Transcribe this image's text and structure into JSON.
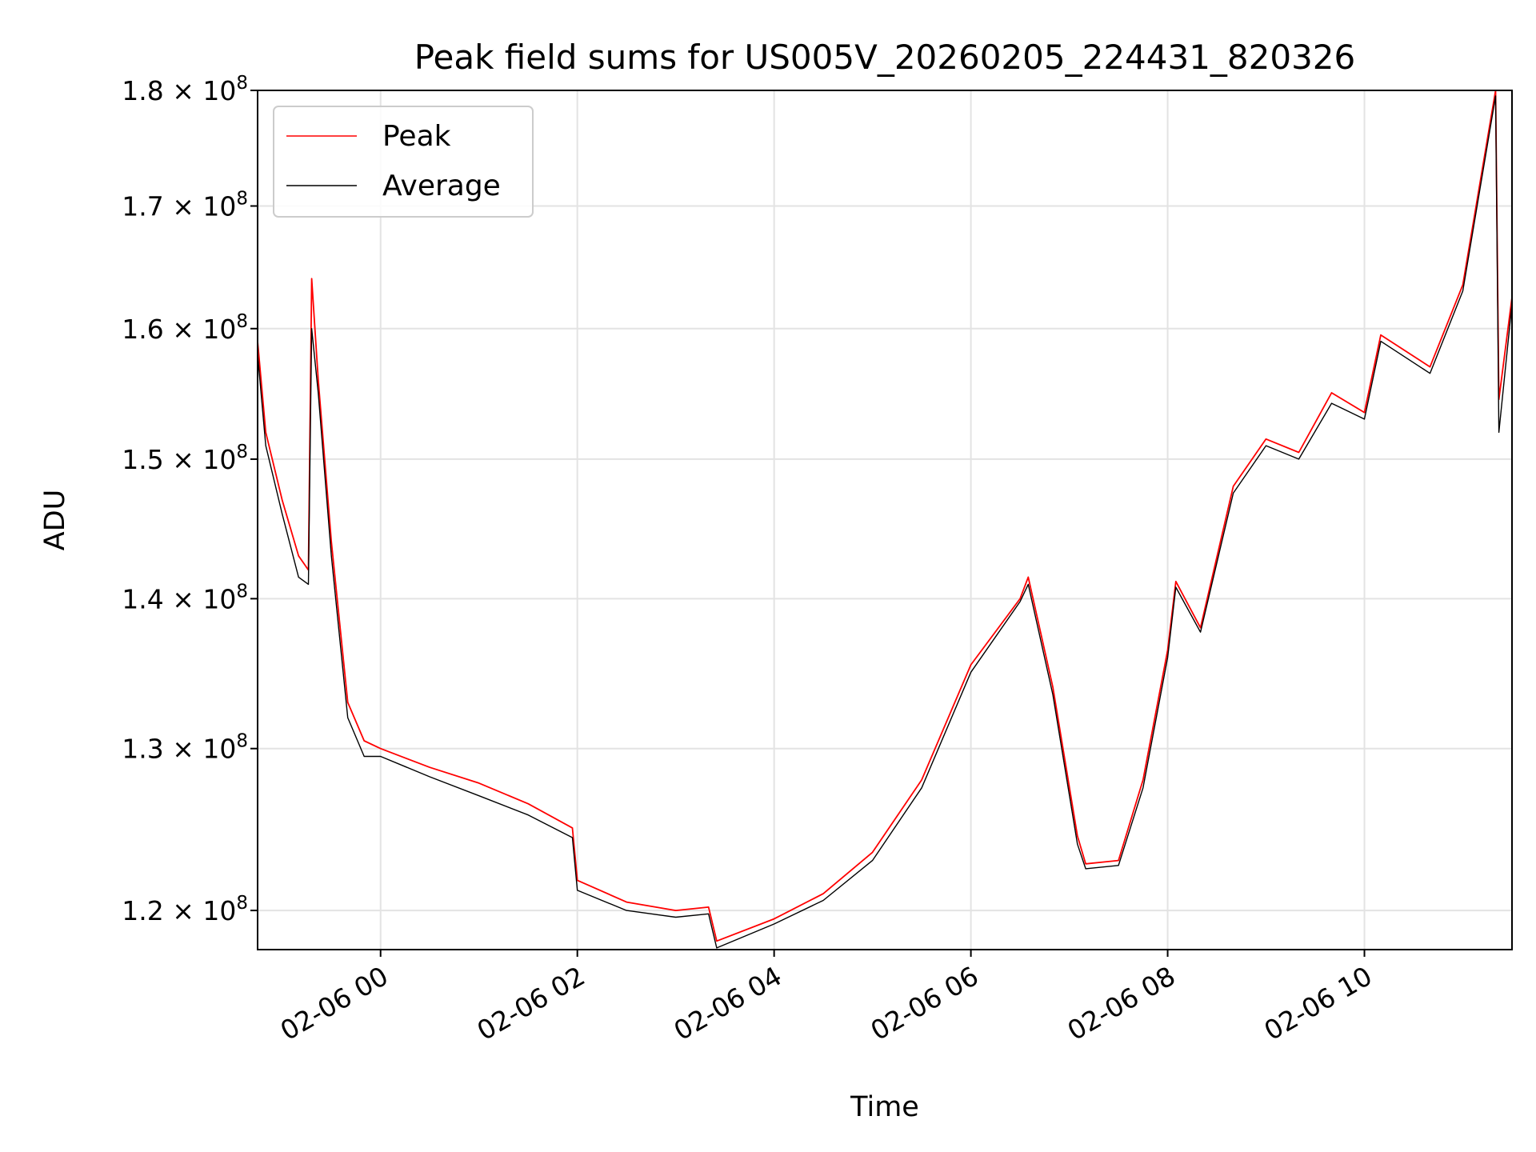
{
  "chart_data": {
    "type": "line",
    "title": "Peak field sums for US005V_20260205_224431_820326",
    "xlabel": "Time",
    "ylabel": "ADU",
    "yscale": "log",
    "ylim": [
      117700000,
      180000000
    ],
    "xlim": [
      "2026-02-05 22:45",
      "2026-02-06 11:30"
    ],
    "grid": true,
    "legend_position": "top-left",
    "x_ticks": [
      {
        "x": "2026-02-06 00:00",
        "label": "02-06 00"
      },
      {
        "x": "2026-02-06 02:00",
        "label": "02-06 02"
      },
      {
        "x": "2026-02-06 04:00",
        "label": "02-06 04"
      },
      {
        "x": "2026-02-06 06:00",
        "label": "02-06 06"
      },
      {
        "x": "2026-02-06 08:00",
        "label": "02-06 08"
      },
      {
        "x": "2026-02-06 10:00",
        "label": "02-06 10"
      }
    ],
    "y_ticks": [
      {
        "y": 120000000,
        "mantissa": "1.2",
        "exp": "8"
      },
      {
        "y": 130000000,
        "mantissa": "1.3",
        "exp": "8"
      },
      {
        "y": 140000000,
        "mantissa": "1.4",
        "exp": "8"
      },
      {
        "y": 150000000,
        "mantissa": "1.5",
        "exp": "8"
      },
      {
        "y": 160000000,
        "mantissa": "1.6",
        "exp": "8"
      },
      {
        "y": 170000000,
        "mantissa": "1.7",
        "exp": "8"
      },
      {
        "y": 180000000,
        "mantissa": "1.8",
        "exp": "8"
      }
    ],
    "series": [
      {
        "name": "Peak",
        "color": "#ff0000",
        "points": [
          [
            "2026-02-05 22:45",
            159000000
          ],
          [
            "2026-02-05 22:50",
            152000000
          ],
          [
            "2026-02-05 23:00",
            147000000
          ],
          [
            "2026-02-05 23:10",
            143000000
          ],
          [
            "2026-02-05 23:16",
            142000000
          ],
          [
            "2026-02-05 23:18",
            164000000
          ],
          [
            "2026-02-05 23:22",
            156000000
          ],
          [
            "2026-02-05 23:30",
            144000000
          ],
          [
            "2026-02-05 23:40",
            133000000
          ],
          [
            "2026-02-05 23:50",
            130500000
          ],
          [
            "2026-02-06 00:00",
            130000000
          ],
          [
            "2026-02-06 00:30",
            128800000
          ],
          [
            "2026-02-06 01:00",
            127800000
          ],
          [
            "2026-02-06 01:30",
            126500000
          ],
          [
            "2026-02-06 01:57",
            125000000
          ],
          [
            "2026-02-06 02:00",
            121800000
          ],
          [
            "2026-02-06 02:30",
            120500000
          ],
          [
            "2026-02-06 03:00",
            120000000
          ],
          [
            "2026-02-06 03:20",
            120200000
          ],
          [
            "2026-02-06 03:25",
            118200000
          ],
          [
            "2026-02-06 04:00",
            119500000
          ],
          [
            "2026-02-06 04:30",
            121000000
          ],
          [
            "2026-02-06 05:00",
            123500000
          ],
          [
            "2026-02-06 05:30",
            128000000
          ],
          [
            "2026-02-06 06:00",
            135500000
          ],
          [
            "2026-02-06 06:30",
            140000000
          ],
          [
            "2026-02-06 06:35",
            141500000
          ],
          [
            "2026-02-06 06:50",
            134000000
          ],
          [
            "2026-02-06 07:05",
            124500000
          ],
          [
            "2026-02-06 07:10",
            122800000
          ],
          [
            "2026-02-06 07:30",
            123000000
          ],
          [
            "2026-02-06 07:45",
            128000000
          ],
          [
            "2026-02-06 08:00",
            136500000
          ],
          [
            "2026-02-06 08:05",
            141200000
          ],
          [
            "2026-02-06 08:20",
            138000000
          ],
          [
            "2026-02-06 08:40",
            148000000
          ],
          [
            "2026-02-06 09:00",
            151500000
          ],
          [
            "2026-02-06 09:20",
            150500000
          ],
          [
            "2026-02-06 09:40",
            155000000
          ],
          [
            "2026-02-06 10:00",
            153500000
          ],
          [
            "2026-02-06 10:10",
            159500000
          ],
          [
            "2026-02-06 10:40",
            157000000
          ],
          [
            "2026-02-06 11:00",
            163500000
          ],
          [
            "2026-02-06 11:20",
            180000000
          ],
          [
            "2026-02-06 11:22",
            154500000
          ],
          [
            "2026-02-06 11:30",
            162500000
          ]
        ]
      },
      {
        "name": "Average",
        "color": "#000000",
        "points": [
          [
            "2026-02-05 22:45",
            158000000
          ],
          [
            "2026-02-05 22:50",
            151000000
          ],
          [
            "2026-02-05 23:00",
            146000000
          ],
          [
            "2026-02-05 23:10",
            141500000
          ],
          [
            "2026-02-05 23:16",
            141000000
          ],
          [
            "2026-02-05 23:18",
            160000000
          ],
          [
            "2026-02-05 23:22",
            155000000
          ],
          [
            "2026-02-05 23:30",
            143000000
          ],
          [
            "2026-02-05 23:40",
            132000000
          ],
          [
            "2026-02-05 23:50",
            129500000
          ],
          [
            "2026-02-06 00:00",
            129500000
          ],
          [
            "2026-02-06 00:30",
            128200000
          ],
          [
            "2026-02-06 01:00",
            127000000
          ],
          [
            "2026-02-06 01:30",
            125800000
          ],
          [
            "2026-02-06 01:57",
            124400000
          ],
          [
            "2026-02-06 02:00",
            121200000
          ],
          [
            "2026-02-06 02:30",
            120000000
          ],
          [
            "2026-02-06 03:00",
            119600000
          ],
          [
            "2026-02-06 03:20",
            119800000
          ],
          [
            "2026-02-06 03:25",
            117800000
          ],
          [
            "2026-02-06 04:00",
            119200000
          ],
          [
            "2026-02-06 04:30",
            120600000
          ],
          [
            "2026-02-06 05:00",
            123000000
          ],
          [
            "2026-02-06 05:30",
            127500000
          ],
          [
            "2026-02-06 06:00",
            135000000
          ],
          [
            "2026-02-06 06:30",
            139800000
          ],
          [
            "2026-02-06 06:35",
            141000000
          ],
          [
            "2026-02-06 06:50",
            133500000
          ],
          [
            "2026-02-06 07:05",
            124000000
          ],
          [
            "2026-02-06 07:10",
            122500000
          ],
          [
            "2026-02-06 07:30",
            122700000
          ],
          [
            "2026-02-06 07:45",
            127500000
          ],
          [
            "2026-02-06 08:00",
            136000000
          ],
          [
            "2026-02-06 08:05",
            140800000
          ],
          [
            "2026-02-06 08:20",
            137700000
          ],
          [
            "2026-02-06 08:40",
            147500000
          ],
          [
            "2026-02-06 09:00",
            151000000
          ],
          [
            "2026-02-06 09:20",
            150000000
          ],
          [
            "2026-02-06 09:40",
            154200000
          ],
          [
            "2026-02-06 10:00",
            153000000
          ],
          [
            "2026-02-06 10:10",
            159000000
          ],
          [
            "2026-02-06 10:40",
            156500000
          ],
          [
            "2026-02-06 11:00",
            163000000
          ],
          [
            "2026-02-06 11:20",
            179500000
          ],
          [
            "2026-02-06 11:22",
            152000000
          ],
          [
            "2026-02-06 11:30",
            162000000
          ]
        ]
      }
    ]
  }
}
